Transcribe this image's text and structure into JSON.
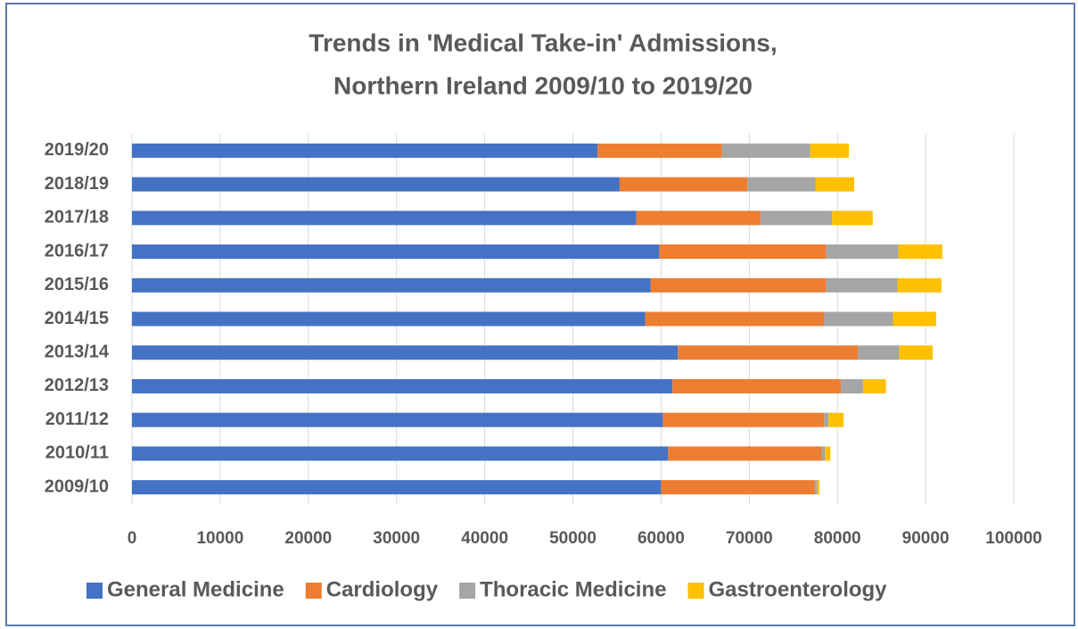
{
  "chart_data": {
    "type": "stacked-barh",
    "title": [
      "Trends in 'Medical Take-in' Admissions,",
      "Northern Ireland 2009/10 to 2019/20"
    ],
    "categories": [
      "2009/10",
      "2010/11",
      "2011/12",
      "2012/13",
      "2013/14",
      "2014/15",
      "2015/16",
      "2016/17",
      "2017/18",
      "2018/19",
      "2019/20"
    ],
    "series": [
      {
        "name": "General Medicine",
        "color": "#4472c4",
        "values": [
          60000,
          60800,
          60200,
          61300,
          61900,
          58200,
          58800,
          59800,
          57200,
          55300,
          52800
        ]
      },
      {
        "name": "Cardiology",
        "color": "#ed7d31",
        "values": [
          17400,
          17400,
          18300,
          19100,
          20400,
          20300,
          19900,
          18900,
          14100,
          14500,
          14100
        ]
      },
      {
        "name": "Thoracic Medicine",
        "color": "#a5a5a5",
        "values": [
          300,
          400,
          500,
          2500,
          4700,
          7800,
          8100,
          8200,
          8100,
          7700,
          10000
        ]
      },
      {
        "name": "Gastroenterology",
        "color": "#ffc000",
        "values": [
          250,
          600,
          1700,
          2600,
          3800,
          4900,
          5000,
          5000,
          4600,
          4400,
          4400
        ]
      }
    ],
    "xlim": [
      0,
      100000
    ],
    "xticks": [
      0,
      10000,
      20000,
      30000,
      40000,
      50000,
      60000,
      70000,
      80000,
      90000,
      100000
    ],
    "grid": true,
    "legend": "bottom"
  }
}
